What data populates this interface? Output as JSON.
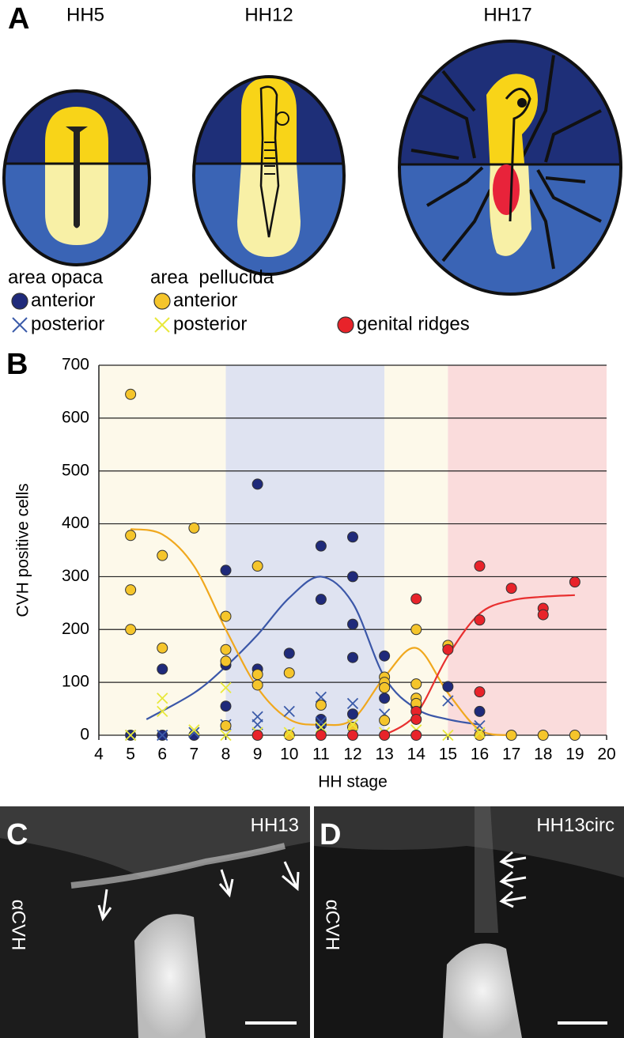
{
  "panel_a": {
    "label": "A",
    "stages": [
      "HH5",
      "HH12",
      "HH17"
    ]
  },
  "chart_data": {
    "type": "scatter",
    "panel_label": "B",
    "xlabel": "HH stage",
    "ylabel": "CVH positive cells",
    "xlim": [
      4,
      20
    ],
    "ylim": [
      0,
      700
    ],
    "xticks": [
      4,
      5,
      6,
      7,
      8,
      9,
      10,
      11,
      12,
      13,
      14,
      15,
      16,
      17,
      18,
      19,
      20
    ],
    "yticks": [
      0,
      100,
      200,
      300,
      400,
      500,
      600,
      700
    ],
    "grid": true,
    "bands": [
      {
        "from": 4,
        "to": 8,
        "color": "#fdf9ea"
      },
      {
        "from": 8,
        "to": 13,
        "color": "#dfe3f1"
      },
      {
        "from": 13,
        "to": 15,
        "color": "#fdf9ea"
      },
      {
        "from": 15,
        "to": 20,
        "color": "#fadcdc"
      }
    ],
    "legend_groups": [
      "area opaca",
      "area  pellucida"
    ],
    "series": [
      {
        "name": "anterior",
        "group": 0,
        "marker": "o",
        "color": "#1f2a7a",
        "x": [
          5,
          6,
          6,
          7,
          8,
          8,
          8,
          9,
          9,
          10,
          11,
          11,
          11,
          11,
          12,
          12,
          12,
          12,
          12,
          13,
          13,
          13,
          14,
          15,
          16
        ],
        "values": [
          0,
          125,
          0,
          0,
          312,
          133,
          55,
          475,
          125,
          155,
          358,
          257,
          30,
          20,
          375,
          300,
          210,
          147,
          40,
          150,
          90,
          70,
          55,
          92,
          45
        ],
        "trend": {
          "color": "#3b57a8",
          "x": [
            5.5,
            7,
            8,
            9,
            10,
            11,
            12,
            13,
            14,
            15,
            16
          ],
          "values": [
            30,
            80,
            130,
            190,
            260,
            300,
            250,
            110,
            50,
            30,
            20
          ]
        }
      },
      {
        "name": "posterior",
        "group": 0,
        "marker": "x",
        "color": "#3b5ba9",
        "x": [
          5,
          6,
          7,
          8,
          9,
          9,
          10,
          11,
          11,
          12,
          12,
          13,
          15,
          16
        ],
        "values": [
          0,
          0,
          5,
          20,
          35,
          20,
          45,
          72,
          25,
          60,
          20,
          40,
          65,
          18
        ]
      },
      {
        "name": "anterior",
        "group": 1,
        "marker": "o",
        "color": "#f5c52b",
        "x": [
          5,
          5,
          5,
          5,
          6,
          6,
          7,
          8,
          8,
          8,
          8,
          9,
          9,
          9,
          10,
          10,
          11,
          12,
          13,
          13,
          13,
          13,
          14,
          14,
          14,
          14,
          15,
          16,
          17,
          18,
          19
        ],
        "values": [
          645,
          378,
          275,
          200,
          340,
          165,
          392,
          225,
          162,
          140,
          18,
          320,
          115,
          95,
          118,
          0,
          57,
          15,
          110,
          100,
          90,
          28,
          200,
          97,
          70,
          60,
          170,
          0,
          0,
          0,
          0
        ],
        "trend": {
          "color": "#f0a81e",
          "x": [
            5,
            6,
            7,
            8,
            9,
            10,
            11,
            12,
            13,
            14,
            15,
            16,
            17
          ],
          "values": [
            390,
            380,
            320,
            200,
            90,
            30,
            20,
            30,
            110,
            165,
            80,
            10,
            0
          ]
        }
      },
      {
        "name": "posterior",
        "group": 1,
        "marker": "x",
        "color": "#e8e83a",
        "x": [
          5,
          6,
          6,
          7,
          8,
          8,
          9,
          10,
          11,
          12,
          13,
          14,
          15,
          16
        ],
        "values": [
          0,
          70,
          45,
          10,
          90,
          0,
          5,
          5,
          15,
          20,
          5,
          10,
          0,
          5
        ]
      },
      {
        "name": "genital ridges",
        "marker": "o",
        "color": "#e8232a",
        "x": [
          9,
          11,
          12,
          13,
          14,
          14,
          14,
          14,
          15,
          16,
          16,
          16,
          17,
          18,
          18,
          19
        ],
        "values": [
          0,
          0,
          0,
          0,
          258,
          45,
          30,
          0,
          162,
          320,
          218,
          82,
          278,
          240,
          228,
          290
        ],
        "trend": {
          "color": "#e83030",
          "x": [
            13,
            14,
            15,
            16,
            17,
            18,
            19
          ],
          "values": [
            0,
            40,
            150,
            230,
            255,
            262,
            265
          ]
        }
      }
    ]
  },
  "panel_c": {
    "label": "C",
    "stage": "HH13",
    "stain": "αCVH"
  },
  "panel_d": {
    "label": "D",
    "stage": "HH13circ",
    "stain": "αCVH"
  }
}
